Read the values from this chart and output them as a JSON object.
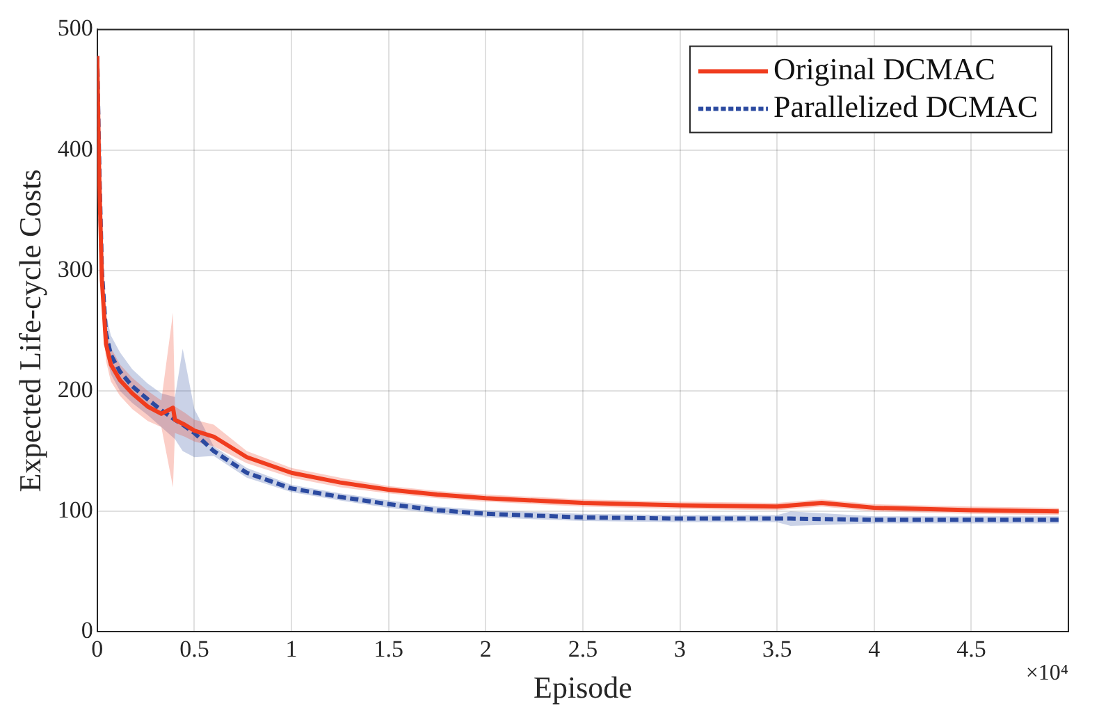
{
  "chart_data": {
    "type": "line",
    "xlabel": "Episode",
    "ylabel": "Expected Life-cycle Costs",
    "annotations": [
      "×10⁴"
    ],
    "xlim": [
      0,
      5
    ],
    "ylim": [
      0,
      500
    ],
    "xticks": [
      0,
      0.5,
      1,
      1.5,
      2,
      2.5,
      3,
      3.5,
      4,
      4.5
    ],
    "yticks": [
      0,
      100,
      200,
      300,
      400,
      500
    ],
    "grid": true,
    "legend": "top right",
    "marker": "none",
    "series": [
      {
        "name": "Original DCMAC",
        "color": "#f03c1e",
        "line_style": "solid",
        "x": [
          0,
          0.01,
          0.024,
          0.045,
          0.07,
          0.117,
          0.18,
          0.26,
          0.33,
          0.39,
          0.4,
          0.45,
          0.5,
          0.6,
          0.77,
          1,
          1.25,
          1.5,
          1.75,
          2,
          2.5,
          3,
          3.5,
          3.73,
          4,
          4.5,
          4.95
        ],
        "values": [
          478,
          380,
          292,
          239,
          222,
          209,
          198,
          187,
          181,
          186,
          176,
          172,
          167,
          162,
          145,
          132,
          124,
          118,
          114,
          111,
          107,
          105,
          104,
          107,
          103,
          101,
          100
        ],
        "lower": [
          470,
          360,
          275,
          225,
          208,
          196,
          185,
          175,
          170,
          120,
          165,
          162,
          158,
          154,
          140,
          128,
          120,
          115,
          111,
          108,
          104,
          102,
          101,
          104,
          100,
          98,
          97
        ],
        "upper": [
          486,
          400,
          310,
          253,
          236,
          222,
          211,
          200,
          192,
          265,
          187,
          182,
          176,
          172,
          150,
          136,
          128,
          121,
          117,
          114,
          110,
          108,
          107,
          110,
          106,
          104,
          103
        ]
      },
      {
        "name": "Parallelized DCMAC",
        "color": "#2b4aa0",
        "line_style": "dashed",
        "x": [
          0,
          0.01,
          0.024,
          0.045,
          0.07,
          0.117,
          0.18,
          0.26,
          0.33,
          0.4,
          0.44,
          0.5,
          0.6,
          0.77,
          1,
          1.25,
          1.5,
          1.75,
          2,
          2.5,
          3,
          3.5,
          3.57,
          4,
          4.5,
          4.95
        ],
        "values": [
          478,
          390,
          300,
          248,
          230,
          216,
          204,
          193,
          184,
          176,
          172,
          165,
          150,
          132,
          119,
          112,
          106,
          101,
          98,
          95,
          94,
          94,
          94,
          93,
          93,
          93
        ],
        "lower": [
          470,
          370,
          282,
          232,
          214,
          200,
          190,
          180,
          170,
          160,
          150,
          145,
          146,
          128,
          116,
          109,
          103,
          98,
          95,
          92,
          91,
          91,
          88,
          90,
          90,
          90
        ],
        "upper": [
          486,
          410,
          318,
          264,
          246,
          232,
          218,
          206,
          198,
          195,
          235,
          185,
          154,
          136,
          122,
          115,
          109,
          104,
          101,
          98,
          97,
          97,
          100,
          96,
          96,
          96
        ]
      }
    ]
  }
}
